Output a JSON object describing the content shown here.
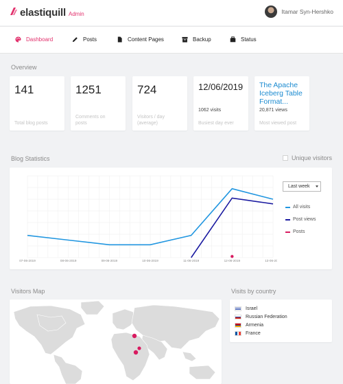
{
  "header": {
    "brand": "elastiquill",
    "brand_sub": "Admin",
    "user_name": "Itamar Syn-Hershko"
  },
  "nav": {
    "dashboard": "Dashboard",
    "posts": "Posts",
    "content_pages": "Content Pages",
    "backup": "Backup",
    "status": "Status"
  },
  "overview": {
    "title": "Overview",
    "total_posts": {
      "value": "141",
      "label": "Total blog posts"
    },
    "comments": {
      "value": "1251",
      "label": "Comments on posts"
    },
    "visitors": {
      "value": "724",
      "label": "Visitors / day (average)"
    },
    "busiest": {
      "value": "12/06/2019",
      "sub": "1062 visits",
      "label": "Busiest day ever"
    },
    "most_viewed": {
      "value": "The Apache Iceberg Table Format...",
      "sub": "20,871 views",
      "label": "Most viewed post"
    }
  },
  "blog_stats": {
    "title": "Blog Statistics",
    "unique_visitors_label": "Unique visitors",
    "range_selected": "Last week",
    "legend": {
      "all_visits": "All visits",
      "post_views": "Post views",
      "posts": "Posts"
    }
  },
  "colors": {
    "accent": "#e2306c",
    "all_visits": "#2196e0",
    "post_views": "#1a1aa0",
    "posts": "#d81b60",
    "link": "#1a8ad0"
  },
  "chart_data": {
    "type": "line",
    "categories": [
      "07-06-2019",
      "08-06-2019",
      "09-06-2019",
      "10-06-2019",
      "11-06-2019",
      "12-06-2019",
      "13-06-2019"
    ],
    "series": [
      {
        "name": "All visits",
        "values": [
          190,
          150,
          110,
          110,
          190,
          590,
          500
        ]
      },
      {
        "name": "Post views",
        "values": [
          null,
          null,
          null,
          null,
          0,
          510,
          460
        ]
      },
      {
        "name": "Posts",
        "values": [
          null,
          null,
          null,
          null,
          null,
          10,
          null
        ]
      }
    ],
    "ylim": [
      0,
      700
    ],
    "grid": true
  },
  "visitors_map": {
    "title": "Visitors Map"
  },
  "by_country": {
    "title": "Visits by country",
    "items": [
      {
        "name": "Israel"
      },
      {
        "name": "Russian Federation"
      },
      {
        "name": "Armenia"
      },
      {
        "name": "France"
      }
    ]
  }
}
